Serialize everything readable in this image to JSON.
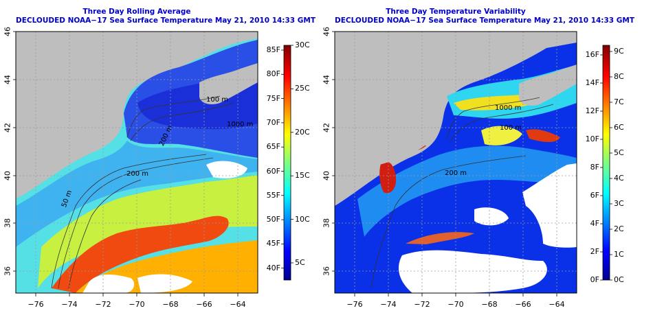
{
  "left_panel": {
    "title_line1": "Three Day Rolling Average",
    "title_line2": "DECLOUDED NOAA−17 Sea Surface Temperature May 21, 2010 14:33 GMT",
    "x_ticks": [
      "−76",
      "−74",
      "−72",
      "−70",
      "−68",
      "−66",
      "−64"
    ],
    "y_ticks": [
      "46",
      "44",
      "42",
      "40",
      "38",
      "36"
    ],
    "contour_labels": [
      "200 m",
      "50 m",
      "200 m",
      "100 m",
      "1000 m"
    ],
    "colorbar_f": [
      "85F",
      "80F",
      "75F",
      "70F",
      "65F",
      "60F",
      "55F",
      "50F",
      "45F",
      "40F"
    ],
    "colorbar_c": [
      "30C",
      "25C",
      "20C",
      "15C",
      "10C",
      "5C"
    ]
  },
  "right_panel": {
    "title_line1": "Three Day Temperature Variability",
    "title_line2": "DECLOUDED NOAA−17 Sea Surface Temperature May 21, 2010 14:33 GMT",
    "x_ticks": [
      "−76",
      "−74",
      "−72",
      "−70",
      "−68",
      "−66",
      "−64"
    ],
    "y_ticks": [
      "46",
      "44",
      "42",
      "40",
      "38",
      "36"
    ],
    "contour_labels": [
      "1000 m",
      "100 m",
      "200 m"
    ],
    "colorbar_f": [
      "16F",
      "14F",
      "12F",
      "10F",
      "8F",
      "6F",
      "4F",
      "2F",
      "0F"
    ],
    "colorbar_c": [
      "9C",
      "8C",
      "7C",
      "6C",
      "5C",
      "4C",
      "3C",
      "2C",
      "1C",
      "0C"
    ]
  },
  "colors": {
    "land": "#bebebe",
    "title": "#0000cc",
    "nodata": "#ffffff"
  }
}
